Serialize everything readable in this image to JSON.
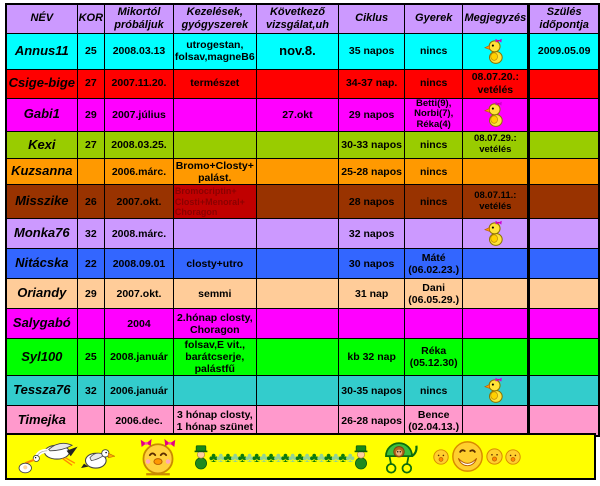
{
  "colors": {
    "header_bg": "#cc99ff",
    "border": "#000000",
    "footer_bg": "#ffff00",
    "highlight_bg": "#c00000",
    "highlight_fg": "#8b0000",
    "value_red": "#7a0a0a",
    "value_magenta": "#6e0a62"
  },
  "chart_data": {
    "type": "table",
    "title": "",
    "columns": [
      "NÉV",
      "KOR",
      "Mikortól próbáljuk",
      "Kezelések, gyógyszerek",
      "Következő vizsgálat,uh",
      "Ciklus",
      "Gyerek",
      "Megjegyzés",
      "Szülés időpontja"
    ],
    "rows": [
      {
        "name": "Annus11",
        "kor": "25",
        "since": "2008.03.13",
        "treat": "utrogestan, folsav,magneB6",
        "next": "nov.8.",
        "cycle": "35 napos",
        "child": "nincs",
        "note": "",
        "note_icon": "pregnant-chick-icon",
        "due": "2009.05.09",
        "bg": "#00ffff",
        "value_fg": ""
      },
      {
        "name": "Csige-bige",
        "kor": "27",
        "since": "2007.11.20.",
        "treat": "természet",
        "next": "",
        "cycle": "34-37 nap.",
        "child": "nincs",
        "note": "08.07.20.: vetélés",
        "note_icon": "",
        "due": "",
        "bg": "#ff0000",
        "value_fg": "#7a0a0a"
      },
      {
        "name": "Gabi1",
        "kor": "29",
        "since": "2007.július",
        "treat": "",
        "next": "27.okt",
        "cycle": "29 napos",
        "child": "Betti(9), Norbi(7), Réka(4)",
        "note": "",
        "note_icon": "pregnant-chick-icon",
        "due": "",
        "bg": "#ff00ff",
        "value_fg": "#6e0a62"
      },
      {
        "name": "Kexi",
        "kor": "27",
        "since": "2008.03.25.",
        "treat": "",
        "next": "",
        "cycle": "30-33 napos",
        "child": "nincs",
        "note": "08.07.29.: vetélés",
        "note_icon": "",
        "due": "",
        "bg": "#99cc00",
        "value_fg": ""
      },
      {
        "name": "Kuzsanna",
        "kor": "",
        "since": "2006.márc.",
        "treat": "Bromo+Closty+ palást.",
        "next": "",
        "cycle": "25-28 napos",
        "child": "nincs",
        "note": "",
        "note_icon": "",
        "due": "",
        "bg": "#ff9900",
        "value_fg": ""
      },
      {
        "name": "Misszike",
        "kor": "26",
        "since": "2007.okt.",
        "treat": "Bromocriptin+ Closti+Menoral+ Choragon",
        "treat_highlighted": true,
        "next": "",
        "cycle": "28 napos",
        "child": "nincs",
        "note": "08.07.11.: vetélés",
        "note_icon": "",
        "due": "",
        "bg": "#993300",
        "value_fg": ""
      },
      {
        "name": "Monka76",
        "kor": "32",
        "since": "2008.márc.",
        "treat": "",
        "next": "",
        "cycle": "32 napos",
        "child": "",
        "note": "",
        "note_icon": "pregnant-chick-icon",
        "due": "",
        "bg": "#cc99ff",
        "value_fg": ""
      },
      {
        "name": "Nitácska",
        "kor": "22",
        "since": "2008.09.01",
        "treat": "closty+utro",
        "next": "",
        "cycle": "30 napos",
        "child": "Máté (06.02.23.)",
        "note": "",
        "note_icon": "",
        "due": "",
        "bg": "#3366ff",
        "value_fg": ""
      },
      {
        "name": "Oriandy",
        "kor": "29",
        "since": "2007.okt.",
        "treat": "semmi",
        "next": "",
        "cycle": "31 nap",
        "child": "Dani (06.05.29.)",
        "note": "",
        "note_icon": "",
        "due": "",
        "bg": "#ffcc99",
        "value_fg": ""
      },
      {
        "name": "Salygabó",
        "kor": "",
        "since": "2004",
        "treat": "2.hónap closty, Choragon",
        "next": "",
        "cycle": "",
        "child": "",
        "note": "",
        "note_icon": "",
        "due": "",
        "bg": "#ff00ff",
        "value_fg": "#6e0a62"
      },
      {
        "name": "Syl100",
        "kor": "25",
        "since": "2008.január",
        "treat": "folsav,E vit., barátcserje, palástfű",
        "next": "",
        "cycle": "kb 32 nap",
        "child": "Réka (05.12.30)",
        "note": "",
        "note_icon": "",
        "due": "",
        "bg": "#00ff00",
        "value_fg": ""
      },
      {
        "name": "Tessza76",
        "kor": "32",
        "since": "2006.január",
        "treat": "",
        "next": "",
        "cycle": "30-35 napos",
        "child": "nincs",
        "note": "",
        "note_icon": "pregnant-chick-icon",
        "due": "",
        "bg": "#33cccc",
        "value_fg": ""
      },
      {
        "name": "Timejka",
        "kor": "",
        "since": "2006.dec.",
        "treat": "3 hónap closty, 1 hónap szünet",
        "next": "",
        "cycle": "26-28 napos",
        "child": "Bence (02.04.13.)",
        "note": "",
        "note_icon": "",
        "due": "",
        "bg": "#ff99cc",
        "value_fg": ""
      }
    ]
  },
  "footer": {
    "bg": "#ffff00",
    "icons": [
      "stork-with-bundle-icon",
      "pelican-icon",
      "chick-with-bows-icon",
      "leprechaun-icon",
      "clover-garland",
      "leprechaun-icon",
      "baby-stroller-icon",
      "smiley-icons"
    ],
    "clovers": "♣♣♣♣♣♣♣♣♣♣♣♣♣♣♣♣♣♣♣♣"
  }
}
